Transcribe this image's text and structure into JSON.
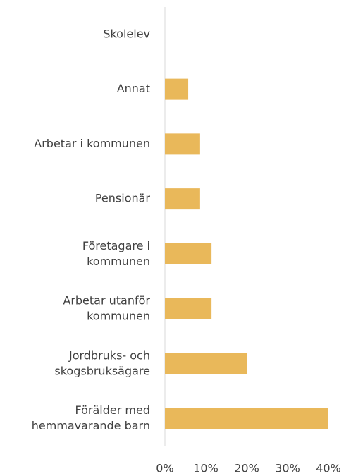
{
  "chart_data": {
    "type": "hbar",
    "orientation": "horizontal",
    "categories": [
      "Skolelev",
      "Annat",
      "Arbetar i kommunen",
      "Pensionär",
      "Företagare i\nkommunen",
      "Arbetar utanför\nkommunen",
      "Jordbruks- och\nskogsbruksägare",
      "Förälder med\nhemmavarande barn"
    ],
    "values": [
      0,
      5.7,
      8.6,
      8.6,
      11.4,
      11.4,
      20,
      40
    ],
    "color": "#e9b85a",
    "xlim": [
      0,
      40
    ],
    "xticks": [
      {
        "value": 0,
        "label": "0%"
      },
      {
        "value": 10,
        "label": "10%"
      },
      {
        "value": 20,
        "label": "20%"
      },
      {
        "value": 30,
        "label": "30%"
      },
      {
        "value": 40,
        "label": "40%"
      }
    ],
    "grid": false
  }
}
